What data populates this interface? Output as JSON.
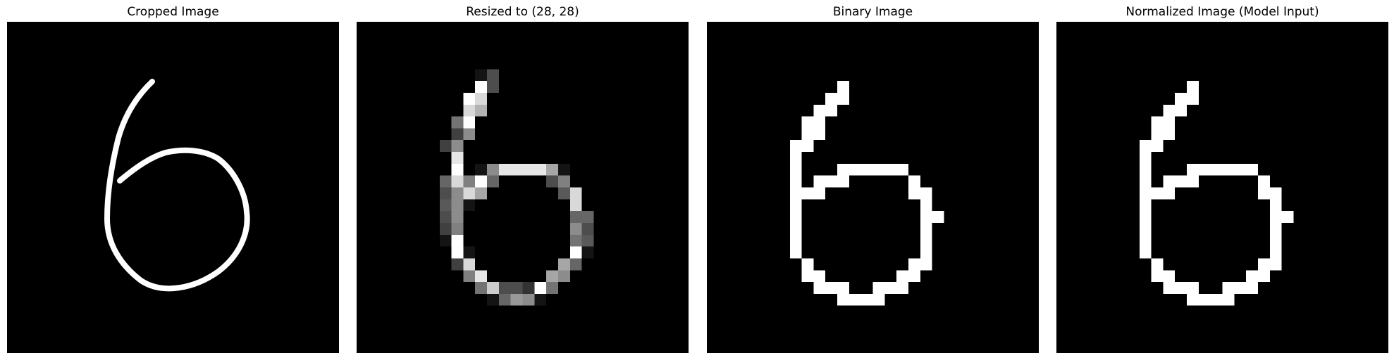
{
  "panels": [
    {
      "title": "Cropped Image",
      "content": "smooth handwritten digit stroke"
    },
    {
      "title": "Resized to (28, 28)",
      "content": "28x28 grayscale pixel grid"
    },
    {
      "title": "Binary Image",
      "content": "28x28 binary pixel grid"
    },
    {
      "title": "Normalized Image (Model Input)",
      "content": "28x28 binary pixel grid"
    }
  ],
  "colors": {
    "background": "#000000",
    "foreground": "#ffffff",
    "page": "#ffffff"
  },
  "grid_size": 28,
  "grayscale_pixels": [
    [
      4,
      10,
      0.08
    ],
    [
      4,
      11,
      0.3
    ],
    [
      5,
      10,
      1.0
    ],
    [
      5,
      11,
      0.3
    ],
    [
      6,
      9,
      1.0
    ],
    [
      6,
      10,
      0.85
    ],
    [
      7,
      9,
      0.85
    ],
    [
      7,
      10,
      0.7
    ],
    [
      8,
      8,
      0.45
    ],
    [
      8,
      9,
      1.0
    ],
    [
      9,
      8,
      0.25
    ],
    [
      9,
      9,
      0.55
    ],
    [
      10,
      7,
      0.25
    ],
    [
      10,
      8,
      0.55
    ],
    [
      11,
      8,
      0.9
    ],
    [
      12,
      8,
      1.0
    ],
    [
      12,
      10,
      0.08
    ],
    [
      12,
      11,
      0.55
    ],
    [
      12,
      12,
      0.9
    ],
    [
      12,
      13,
      0.9
    ],
    [
      12,
      14,
      0.9
    ],
    [
      12,
      15,
      0.9
    ],
    [
      12,
      16,
      0.65
    ],
    [
      12,
      17,
      0.08
    ],
    [
      13,
      7,
      0.4
    ],
    [
      13,
      8,
      0.85
    ],
    [
      13,
      9,
      0.5
    ],
    [
      13,
      10,
      1.0
    ],
    [
      13,
      11,
      0.4
    ],
    [
      13,
      16,
      0.3
    ],
    [
      13,
      17,
      0.5
    ],
    [
      14,
      7,
      0.3
    ],
    [
      14,
      8,
      0.55
    ],
    [
      14,
      9,
      0.85
    ],
    [
      14,
      10,
      0.65
    ],
    [
      14,
      17,
      0.35
    ],
    [
      14,
      18,
      0.85
    ],
    [
      15,
      7,
      0.35
    ],
    [
      15,
      8,
      0.55
    ],
    [
      15,
      9,
      0.08
    ],
    [
      15,
      18,
      0.85
    ],
    [
      16,
      7,
      0.3
    ],
    [
      16,
      8,
      0.55
    ],
    [
      16,
      18,
      0.4
    ],
    [
      16,
      19,
      0.4
    ],
    [
      17,
      7,
      0.25
    ],
    [
      17,
      8,
      0.5
    ],
    [
      17,
      18,
      0.55
    ],
    [
      17,
      19,
      0.3
    ],
    [
      18,
      7,
      0.08
    ],
    [
      18,
      8,
      1.0
    ],
    [
      18,
      18,
      0.45
    ],
    [
      18,
      19,
      0.35
    ],
    [
      19,
      8,
      1.0
    ],
    [
      19,
      9,
      0.08
    ],
    [
      19,
      18,
      1.0
    ],
    [
      19,
      19,
      0.08
    ],
    [
      20,
      8,
      0.25
    ],
    [
      20,
      9,
      0.85
    ],
    [
      20,
      17,
      0.65
    ],
    [
      20,
      18,
      0.4
    ],
    [
      21,
      9,
      0.5
    ],
    [
      21,
      10,
      0.9
    ],
    [
      21,
      16,
      0.65
    ],
    [
      21,
      17,
      0.55
    ],
    [
      22,
      10,
      0.45
    ],
    [
      22,
      11,
      0.8
    ],
    [
      22,
      12,
      0.3
    ],
    [
      22,
      13,
      0.3
    ],
    [
      22,
      14,
      0.2
    ],
    [
      22,
      15,
      1.0
    ],
    [
      22,
      16,
      0.45
    ],
    [
      23,
      11,
      0.08
    ],
    [
      23,
      12,
      0.4
    ],
    [
      23,
      13,
      0.6
    ],
    [
      23,
      14,
      0.55
    ],
    [
      23,
      15,
      0.08
    ]
  ],
  "binary_pixels": [
    [
      5,
      11
    ],
    [
      6,
      10
    ],
    [
      6,
      11
    ],
    [
      7,
      9
    ],
    [
      7,
      10
    ],
    [
      8,
      8
    ],
    [
      8,
      9
    ],
    [
      9,
      8
    ],
    [
      9,
      9
    ],
    [
      10,
      7
    ],
    [
      10,
      8
    ],
    [
      11,
      7
    ],
    [
      12,
      7
    ],
    [
      12,
      11
    ],
    [
      12,
      12
    ],
    [
      12,
      13
    ],
    [
      12,
      14
    ],
    [
      12,
      15
    ],
    [
      12,
      16
    ],
    [
      13,
      7
    ],
    [
      13,
      9
    ],
    [
      13,
      10
    ],
    [
      13,
      11
    ],
    [
      13,
      17
    ],
    [
      14,
      7
    ],
    [
      14,
      8
    ],
    [
      14,
      9
    ],
    [
      14,
      17
    ],
    [
      14,
      18
    ],
    [
      15,
      7
    ],
    [
      15,
      18
    ],
    [
      16,
      7
    ],
    [
      16,
      18
    ],
    [
      16,
      19
    ],
    [
      17,
      7
    ],
    [
      17,
      18
    ],
    [
      18,
      7
    ],
    [
      18,
      18
    ],
    [
      19,
      7
    ],
    [
      19,
      18
    ],
    [
      20,
      8
    ],
    [
      20,
      17
    ],
    [
      20,
      18
    ],
    [
      21,
      8
    ],
    [
      21,
      9
    ],
    [
      21,
      16
    ],
    [
      21,
      17
    ],
    [
      22,
      9
    ],
    [
      22,
      10
    ],
    [
      22,
      11
    ],
    [
      22,
      14
    ],
    [
      22,
      15
    ],
    [
      22,
      16
    ],
    [
      23,
      11
    ],
    [
      23,
      12
    ],
    [
      23,
      13
    ],
    [
      23,
      14
    ]
  ]
}
